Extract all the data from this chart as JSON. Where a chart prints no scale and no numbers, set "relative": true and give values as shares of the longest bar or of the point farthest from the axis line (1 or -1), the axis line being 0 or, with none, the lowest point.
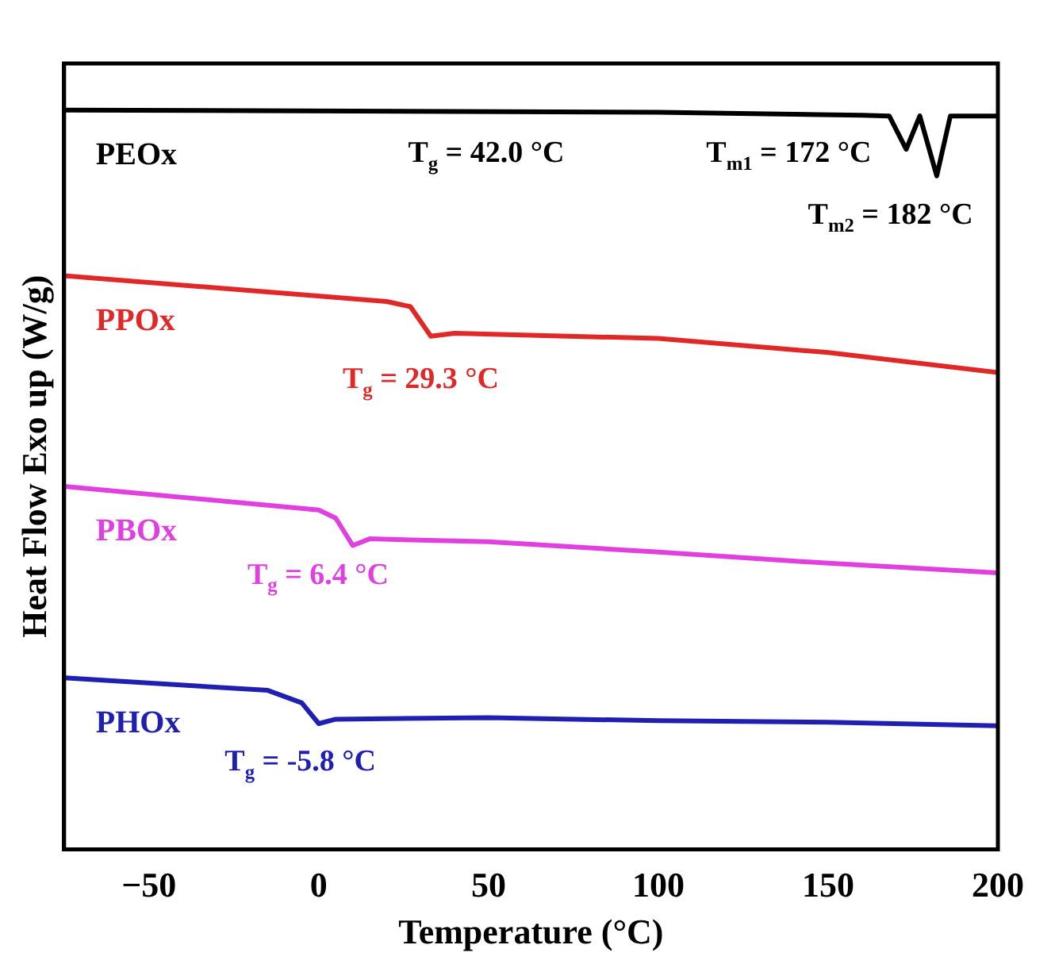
{
  "chart_data": {
    "type": "line",
    "relative": true,
    "xlabel": "Temperature (°C)",
    "ylabel": "Heat Flow Exo up (W/g)",
    "xlim": [
      -75,
      200
    ],
    "xticks": [
      -50,
      0,
      50,
      100,
      150,
      200
    ],
    "grid": false,
    "legend": false,
    "marker": "none",
    "line_style": "solid",
    "series": [
      {
        "name": "PEOx",
        "color": "#000000",
        "x": [
          -75,
          100,
          160,
          168,
          173,
          177,
          182,
          186,
          200
        ],
        "values": [
          1.0,
          0.997,
          0.993,
          0.992,
          0.947,
          0.992,
          0.911,
          0.992,
          0.992
        ]
      },
      {
        "name": "PPOx",
        "color": "#e02828",
        "x": [
          -75,
          20,
          27,
          33,
          40,
          100,
          150,
          200
        ],
        "values": [
          0.776,
          0.741,
          0.734,
          0.694,
          0.698,
          0.691,
          0.672,
          0.645
        ]
      },
      {
        "name": "PBOx",
        "color": "#e040e0",
        "x": [
          -75,
          0,
          5,
          10,
          15,
          50,
          100,
          150,
          200
        ],
        "values": [
          0.491,
          0.459,
          0.448,
          0.411,
          0.42,
          0.416,
          0.402,
          0.387,
          0.374
        ]
      },
      {
        "name": "PHOx",
        "color": "#2020b0",
        "x": [
          -75,
          -15,
          -5,
          0,
          5,
          50,
          100,
          150,
          200
        ],
        "values": [
          0.232,
          0.215,
          0.198,
          0.17,
          0.176,
          0.178,
          0.174,
          0.172,
          0.167
        ]
      }
    ],
    "annotations": [
      "T$_{g}$ = 42.0 °C",
      "T$_{m1}$ = 172 °C",
      "T$_{m2}$ = 182 °C",
      "T$_{g}$ = 29.3 °C",
      "T$_{g}$ = 6.4 °C",
      "T$_{g}$ = -5.8 °C"
    ]
  }
}
